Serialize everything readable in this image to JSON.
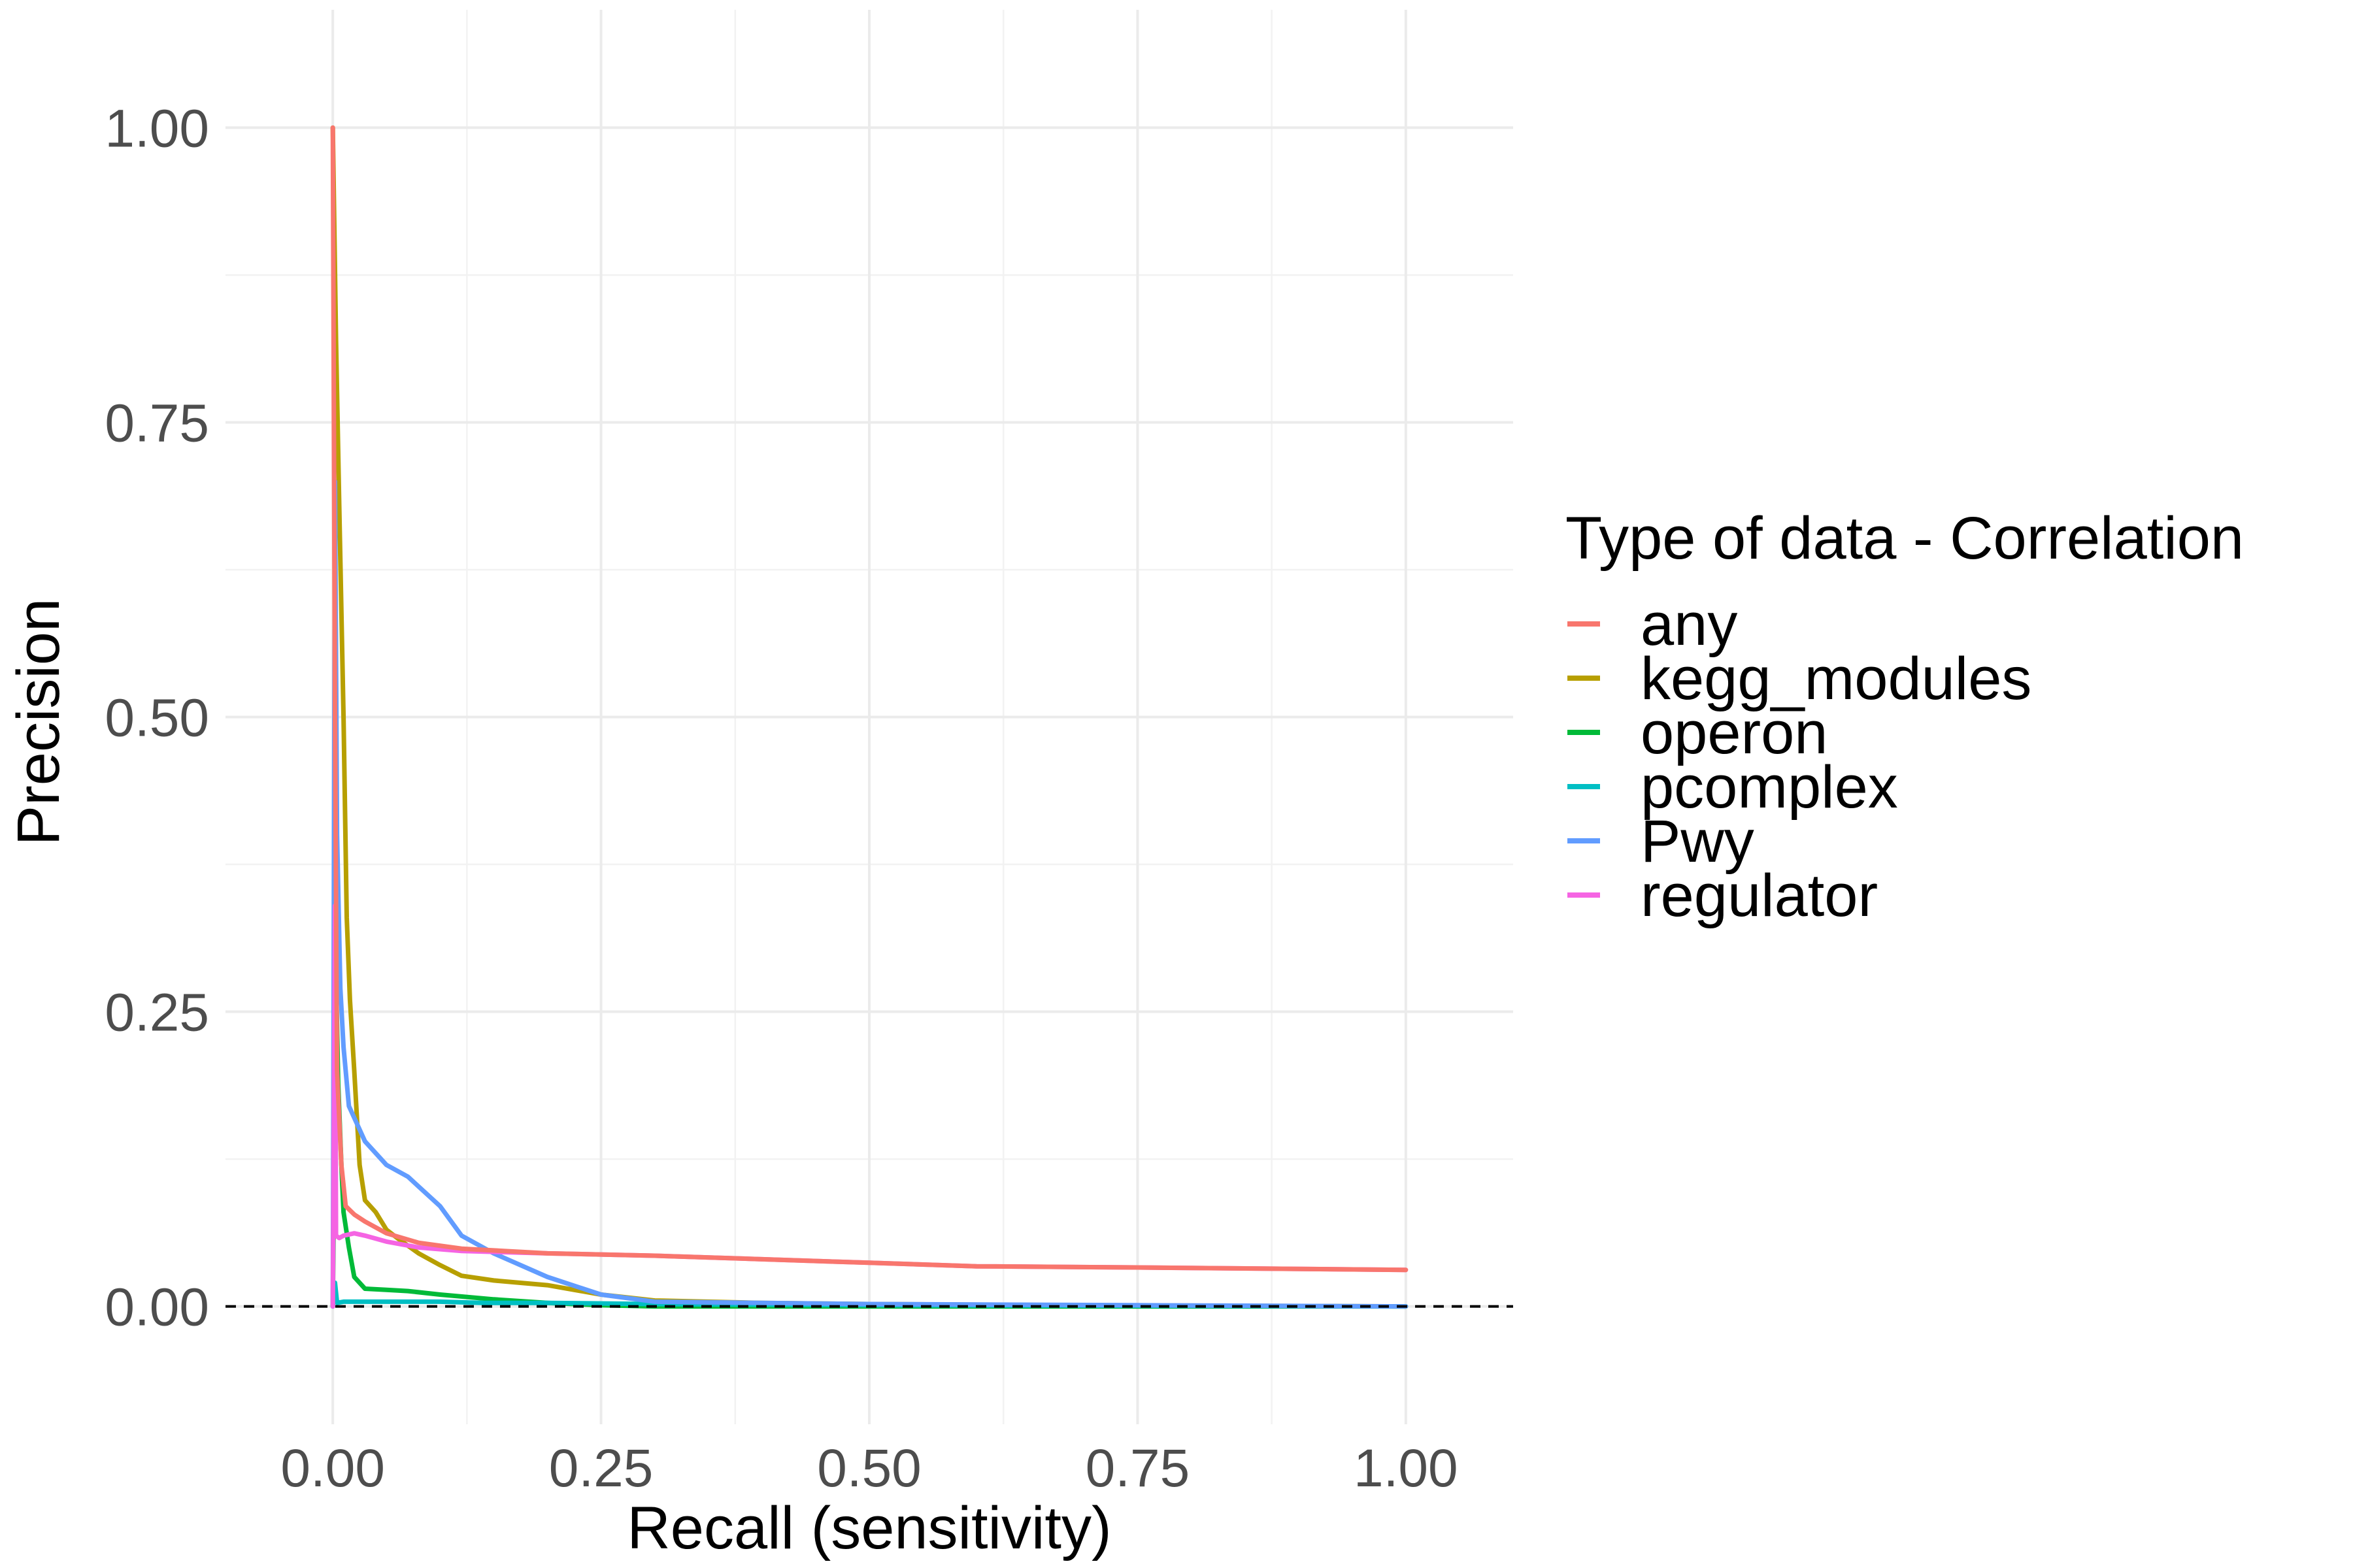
{
  "chart_data": {
    "type": "line",
    "title": "",
    "xlabel": "Recall (sensitivity)",
    "ylabel": "Precision",
    "xlim": [
      -0.1,
      1.1
    ],
    "ylim": [
      -0.1,
      1.1
    ],
    "x_ticks": [
      "0.00",
      "0.25",
      "0.50",
      "0.75",
      "1.00"
    ],
    "y_ticks": [
      "0.00",
      "0.25",
      "0.50",
      "0.75",
      "1.00"
    ],
    "x_tick_values": [
      0,
      0.25,
      0.5,
      0.75,
      1.0
    ],
    "y_tick_values": [
      0,
      0.25,
      0.5,
      0.75,
      1.0
    ],
    "grid": true,
    "reference_line": {
      "y": 0,
      "style": "dashed",
      "color": "#000000"
    },
    "legend": {
      "title": "Type of data - Correlation",
      "position": "right"
    },
    "series": [
      {
        "name": "kegg_modules",
        "color": "#B79F00",
        "x": [
          0.0,
          0.003,
          0.006,
          0.01,
          0.013,
          0.016,
          0.02,
          0.025,
          0.03,
          0.04,
          0.05,
          0.06,
          0.08,
          0.1,
          0.12,
          0.15,
          0.2,
          0.25,
          0.3,
          0.4,
          0.5,
          0.7,
          1.0
        ],
        "y": [
          1.0,
          0.82,
          0.68,
          0.5,
          0.33,
          0.26,
          0.2,
          0.12,
          0.09,
          0.08,
          0.065,
          0.058,
          0.045,
          0.035,
          0.026,
          0.022,
          0.018,
          0.01,
          0.005,
          0.003,
          0.002,
          0.001,
          0.0
        ]
      },
      {
        "name": "operon",
        "color": "#00BA38",
        "x": [
          0.0,
          0.003,
          0.005,
          0.008,
          0.01,
          0.015,
          0.02,
          0.03,
          0.05,
          0.07,
          0.1,
          0.15,
          0.2,
          0.25,
          0.3,
          0.5,
          1.0
        ],
        "y": [
          0.0,
          0.28,
          0.19,
          0.12,
          0.08,
          0.05,
          0.025,
          0.015,
          0.014,
          0.013,
          0.01,
          0.006,
          0.003,
          0.001,
          0.0,
          0.0,
          0.0
        ]
      },
      {
        "name": "pcomplex",
        "color": "#00BFC4",
        "x": [
          0.0,
          0.002,
          0.004,
          0.01,
          0.03,
          0.06,
          0.1,
          0.14,
          0.2,
          0.3,
          0.5,
          1.0
        ],
        "y": [
          0.0,
          0.02,
          0.003,
          0.004,
          0.004,
          0.004,
          0.004,
          0.003,
          0.003,
          0.002,
          0.001,
          0.0
        ]
      },
      {
        "name": "Pwy",
        "color": "#619CFF",
        "x": [
          0.0,
          0.002,
          0.004,
          0.007,
          0.01,
          0.015,
          0.02,
          0.03,
          0.05,
          0.07,
          0.1,
          0.12,
          0.15,
          0.2,
          0.25,
          0.3,
          0.5,
          0.75,
          1.0
        ],
        "y": [
          0.0,
          0.7,
          0.4,
          0.27,
          0.22,
          0.17,
          0.16,
          0.14,
          0.12,
          0.11,
          0.085,
          0.06,
          0.045,
          0.025,
          0.01,
          0.004,
          0.002,
          0.001,
          0.0
        ]
      },
      {
        "name": "regulator",
        "color": "#F564E3",
        "x": [
          0.0,
          0.002,
          0.003,
          0.006,
          0.01,
          0.02,
          0.03,
          0.05,
          0.08,
          0.12,
          0.2,
          0.3,
          0.4,
          0.5,
          0.6,
          0.75,
          1.0
        ],
        "y": [
          0.0,
          0.34,
          0.06,
          0.058,
          0.06,
          0.062,
          0.06,
          0.055,
          0.05,
          0.047,
          0.045,
          0.043,
          0.04,
          0.037,
          0.034,
          0.033,
          0.031
        ]
      },
      {
        "name": "any",
        "color": "#F8766D",
        "x": [
          0.0,
          0.002,
          0.004,
          0.008,
          0.012,
          0.02,
          0.03,
          0.05,
          0.08,
          0.12,
          0.2,
          0.3,
          0.4,
          0.5,
          0.6,
          0.75,
          1.0
        ],
        "y": [
          1.0,
          0.5,
          0.2,
          0.12,
          0.085,
          0.078,
          0.072,
          0.062,
          0.054,
          0.049,
          0.045,
          0.043,
          0.04,
          0.037,
          0.034,
          0.033,
          0.031
        ]
      }
    ],
    "legend_order": [
      "any",
      "kegg_modules",
      "operon",
      "pcomplex",
      "Pwy",
      "regulator"
    ]
  }
}
